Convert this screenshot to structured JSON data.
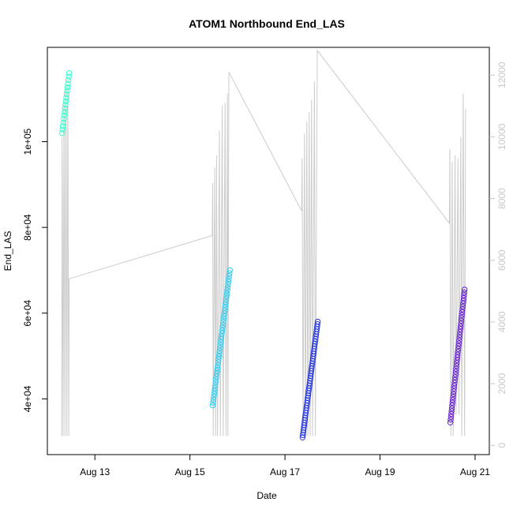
{
  "chart_data": {
    "type": "scatter",
    "title": "ATOM1 Northbound End_LAS",
    "xlabel": "Date",
    "ylabel": "End_LAS",
    "x_ticks": [
      {
        "label": "Aug 13",
        "day": 13
      },
      {
        "label": "Aug 15",
        "day": 15
      },
      {
        "label": "Aug 17",
        "day": 17
      },
      {
        "label": "Aug 19",
        "day": 19
      },
      {
        "label": "Aug 21",
        "day": 21
      }
    ],
    "xlim_days": [
      12.0,
      21.3
    ],
    "y_left": {
      "range": [
        27000,
        122000
      ],
      "ticks": [
        {
          "value": 40000,
          "label": "4e+04"
        },
        {
          "value": 60000,
          "label": "6e+04"
        },
        {
          "value": 80000,
          "label": "8e+04"
        },
        {
          "value": 100000,
          "label": "1e+05"
        }
      ]
    },
    "y_right": {
      "range": [
        -300,
        12900
      ],
      "color": "#c8c8c8",
      "ticks": [
        {
          "value": 0,
          "label": "0"
        },
        {
          "value": 2000,
          "label": "2000"
        },
        {
          "value": 4000,
          "label": "4000"
        },
        {
          "value": 6000,
          "label": "6000"
        },
        {
          "value": 8000,
          "label": "8000"
        },
        {
          "value": 10000,
          "label": "10000"
        },
        {
          "value": 12000,
          "label": "12000"
        }
      ]
    },
    "scatter_groups": [
      {
        "color": "#33ffcc",
        "x_start": 12.31,
        "x_end": 12.46,
        "y_start": 102000,
        "y_end": 116000,
        "n": 18
      },
      {
        "color": "#33ccee",
        "x_start": 15.48,
        "x_end": 15.84,
        "y_start": 38500,
        "y_end": 70000,
        "n": 48
      },
      {
        "color": "#2233dd",
        "x_start": 17.37,
        "x_end": 17.69,
        "y_start": 31000,
        "y_end": 58000,
        "n": 48
      },
      {
        "color": "#6622cc",
        "x_start": 20.48,
        "x_end": 20.78,
        "y_start": 34500,
        "y_end": 65500,
        "n": 48
      }
    ],
    "line_series": {
      "color": "#cccccc",
      "points": [
        [
          12.3,
          300
        ],
        [
          12.31,
          10000
        ],
        [
          12.33,
          300
        ],
        [
          12.35,
          11100
        ],
        [
          12.37,
          300
        ],
        [
          12.39,
          11600
        ],
        [
          12.41,
          300
        ],
        [
          12.43,
          11700
        ],
        [
          12.45,
          300
        ],
        [
          12.46,
          5400
        ],
        [
          15.47,
          6800
        ],
        [
          15.48,
          8500
        ],
        [
          15.49,
          300
        ],
        [
          15.52,
          9000
        ],
        [
          15.54,
          300
        ],
        [
          15.56,
          9400
        ],
        [
          15.58,
          300
        ],
        [
          15.62,
          10200
        ],
        [
          15.64,
          300
        ],
        [
          15.68,
          11000
        ],
        [
          15.7,
          300
        ],
        [
          15.74,
          11100
        ],
        [
          15.76,
          300
        ],
        [
          15.79,
          11400
        ],
        [
          15.8,
          300
        ],
        [
          15.82,
          12100
        ],
        [
          17.35,
          7600
        ],
        [
          17.36,
          9300
        ],
        [
          17.38,
          300
        ],
        [
          17.41,
          10100
        ],
        [
          17.43,
          300
        ],
        [
          17.46,
          10500
        ],
        [
          17.48,
          300
        ],
        [
          17.51,
          10800
        ],
        [
          17.53,
          300
        ],
        [
          17.56,
          11200
        ],
        [
          17.58,
          300
        ],
        [
          17.62,
          11800
        ],
        [
          17.64,
          300
        ],
        [
          17.68,
          12800
        ],
        [
          20.46,
          7200
        ],
        [
          20.47,
          9600
        ],
        [
          20.49,
          300
        ],
        [
          20.52,
          9200
        ],
        [
          20.54,
          300
        ],
        [
          20.58,
          9400
        ],
        [
          20.6,
          1000
        ],
        [
          20.64,
          9300
        ],
        [
          20.66,
          1000
        ],
        [
          20.7,
          10000
        ],
        [
          20.72,
          300
        ],
        [
          20.75,
          11400
        ],
        [
          20.78,
          300
        ],
        [
          20.8,
          10900
        ]
      ]
    }
  }
}
